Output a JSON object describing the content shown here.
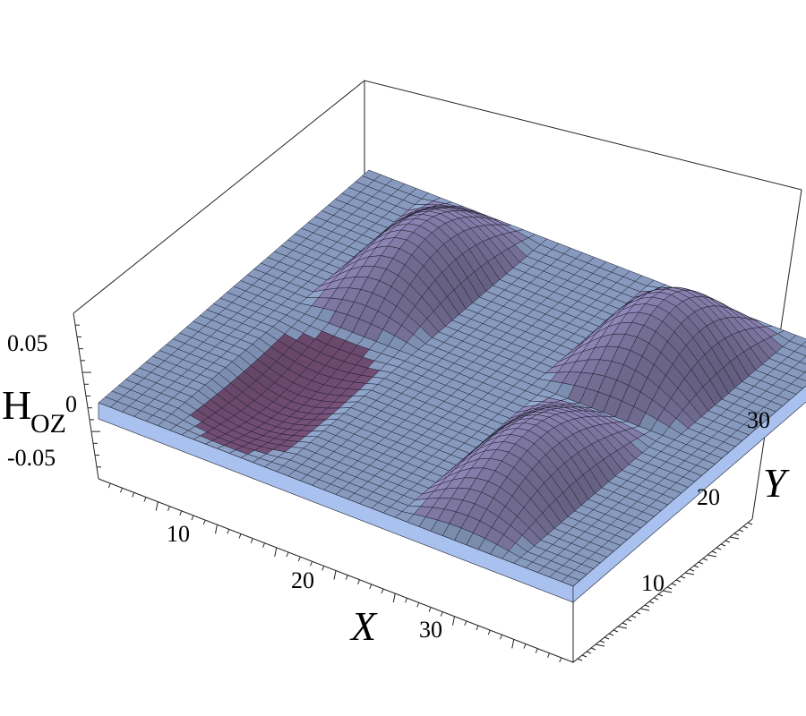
{
  "chart_data": {
    "type": "surface3d",
    "title": "",
    "xlabel": "X",
    "ylabel": "Y",
    "zlabel": "H",
    "zlabel_subscript": "OZ",
    "xlim": [
      0,
      40
    ],
    "ylim": [
      0,
      40
    ],
    "zlim": [
      -0.07,
      0.07
    ],
    "xticks": [
      10,
      20,
      30
    ],
    "xtick_labels": [
      "10",
      "20",
      "30"
    ],
    "yticks": [
      10,
      20,
      30
    ],
    "ytick_labels": [
      "10",
      "20",
      "30"
    ],
    "zticks": [
      0.05,
      0,
      -0.05
    ],
    "ztick_labels": [
      "0.05",
      "0",
      "-0.05"
    ],
    "surface_pattern": {
      "description": "flat plane at z=0 with four cutouts; two raised half-period sine ridges along the upper-left and right positions",
      "ridge_peak": 0.06,
      "trough_min": -0.06
    },
    "colors": {
      "plane": "#a9c1ee",
      "ridge": "#a49bd2",
      "wall_light": "#e8b89a",
      "wall_dark": "#8a5f8e",
      "mesh": "#1b1b2b"
    }
  }
}
